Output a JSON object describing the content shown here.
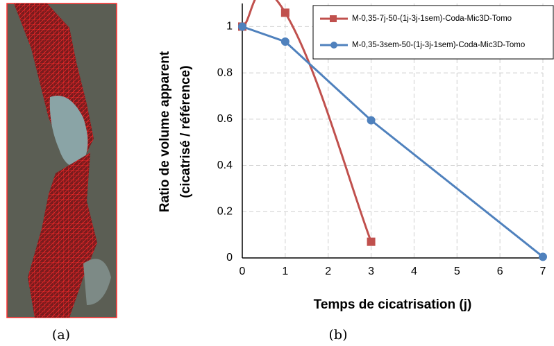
{
  "captions": [
    "(a)",
    "(b)"
  ],
  "chart_data": {
    "type": "line",
    "xlabel": "Temps de cicatrisation (j)",
    "ylabel": [
      "Ratio de volume apparent",
      "(cicatrisé / référence)"
    ],
    "xlim": [
      0,
      7
    ],
    "xticks": [
      0,
      1,
      2,
      3,
      4,
      5,
      6,
      7
    ],
    "ylim": [
      0,
      1.1
    ],
    "yticks": [
      0,
      0.2,
      0.4,
      0.6,
      0.8,
      1
    ],
    "grid": true,
    "legend": "upper right",
    "series": [
      {
        "name": "M-0,35-7j-50-(1j-3j-1sem)-Coda-Mic3D-Tomo",
        "color": "#c0504d",
        "marker": "square",
        "smooth": true,
        "x": [
          0,
          1,
          3
        ],
        "values": [
          1,
          1.06,
          0.07
        ]
      },
      {
        "name": "M-0,35-3sem-50-(1j-3j-1sem)-Coda-Mic3D-Tomo",
        "color": "#4f81bd",
        "marker": "circle",
        "smooth": false,
        "x": [
          0,
          1,
          3,
          7
        ],
        "values": [
          1,
          0.935,
          0.595,
          0.005
        ]
      }
    ]
  }
}
